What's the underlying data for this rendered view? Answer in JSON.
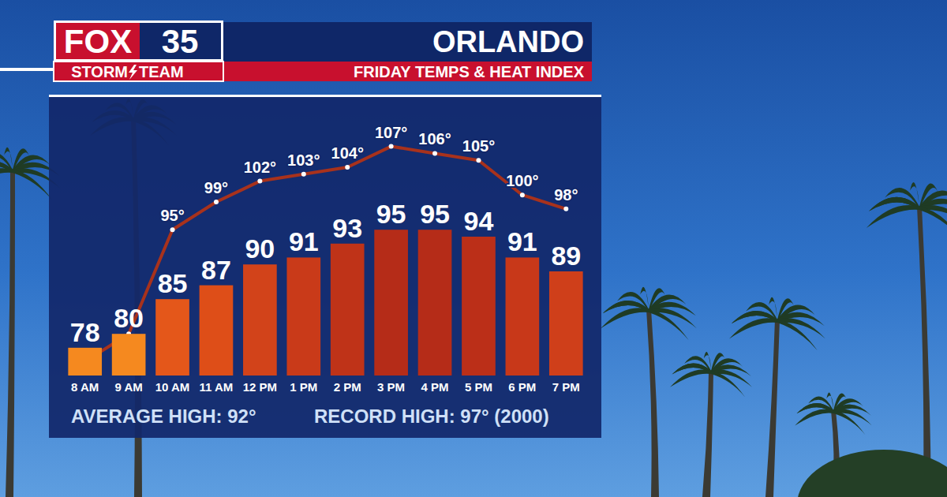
{
  "header": {
    "logo": "FOX",
    "logo_number": "35",
    "logo_sub_left": "STORM",
    "logo_sub_right": "TEAM"
  },
  "chart_data": {
    "type": "bar",
    "title": "ORLANDO",
    "subtitle": "FRIDAY TEMPS & HEAT INDEX",
    "categories": [
      "8 AM",
      "9 AM",
      "10 AM",
      "11 AM",
      "12 PM",
      "1 PM",
      "2 PM",
      "3 PM",
      "4 PM",
      "5 PM",
      "6 PM",
      "7 PM"
    ],
    "series": [
      {
        "type": "bar",
        "values": [
          78,
          80,
          85,
          87,
          90,
          91,
          93,
          95,
          95,
          94,
          91,
          89
        ],
        "colors": [
          "#f5891f",
          "#f5891f",
          "#e4571a",
          "#de4e18",
          "#d2431a",
          "#c93a19",
          "#bf3318",
          "#b52c18",
          "#b52c18",
          "#bb2f18",
          "#c83819",
          "#cf3f1a"
        ]
      },
      {
        "type": "line",
        "color": "#a8321c",
        "marker": "circle",
        "values": [
          76,
          80,
          95,
          99,
          102,
          103,
          104,
          107,
          106,
          105,
          100,
          98
        ],
        "value_labels": [
          null,
          null,
          "95°",
          "99°",
          "102°",
          "103°",
          "104°",
          "107°",
          "106°",
          "105°",
          "100°",
          "98°"
        ]
      }
    ],
    "ylim": [
      74,
      114
    ],
    "grid": false,
    "data_labels": true,
    "tick_labels": "x",
    "annotations": [
      "AVERAGE HIGH: 92°",
      "RECORD HIGH: 97° (2000)"
    ]
  }
}
